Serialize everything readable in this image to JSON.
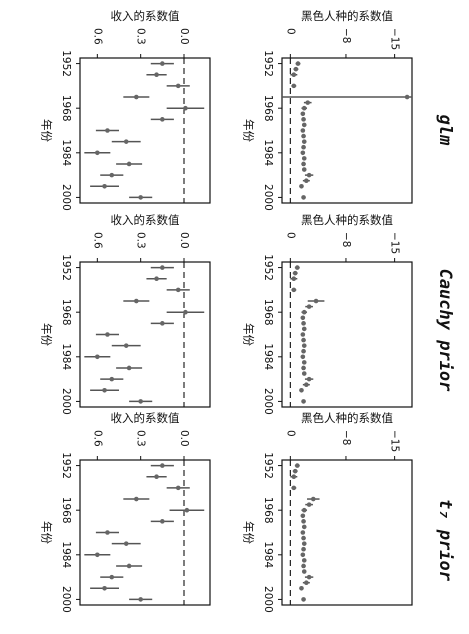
{
  "figure": {
    "column_titles": [
      "glm",
      "Cauchy prior",
      "t₇ prior"
    ]
  },
  "chart_data": [
    {
      "type": "scatter",
      "model": "glm",
      "variable": "race",
      "xlabel": "年份",
      "ylabel": "黑色人种的系数值",
      "xlim": [
        1950,
        2002
      ],
      "ylim": [
        -17.5,
        1.2
      ],
      "xticks": [
        "1952",
        "1968",
        "1984",
        "2000"
      ],
      "yticks": [
        "−15",
        "−8",
        "0"
      ],
      "x": [
        1952,
        1954,
        1956,
        1960,
        1964,
        1966,
        1968,
        1970,
        1972,
        1974,
        1976,
        1978,
        1980,
        1982,
        1984,
        1986,
        1988,
        1990,
        1992,
        1994,
        1996,
        2000
      ],
      "y": [
        -1.1,
        -0.8,
        -0.5,
        -0.5,
        -16.8,
        -2.5,
        -2.0,
        -1.8,
        -1.9,
        -2.0,
        -1.8,
        -1.9,
        -2.0,
        -1.9,
        -1.8,
        -2.0,
        -1.9,
        -2.0,
        -2.7,
        -2.3,
        -1.6,
        -1.9
      ],
      "yerr": [
        0.35,
        0.35,
        0.5,
        0.35,
        0,
        0.55,
        0.4,
        0.3,
        0.3,
        0.3,
        0.3,
        0.3,
        0.3,
        0.3,
        0.3,
        0.3,
        0.3,
        0.3,
        0.6,
        0.5,
        0.3,
        0.3
      ],
      "yerr_lower_to": [
        null,
        null,
        null,
        null,
        -17.5,
        null,
        null,
        null,
        null,
        null,
        null,
        null,
        null,
        null,
        null,
        null,
        null,
        null,
        null,
        null,
        null,
        null
      ],
      "yerr_upper_to": [
        null,
        null,
        null,
        null,
        1.2,
        null,
        null,
        null,
        null,
        null,
        null,
        null,
        null,
        null,
        null,
        null,
        null,
        null,
        null,
        null,
        null,
        null
      ]
    },
    {
      "type": "scatter",
      "model": "glm",
      "variable": "income",
      "xlabel": "年份",
      "ylabel": "收入的系数值",
      "xlim": [
        1950,
        2002
      ],
      "ylim": [
        -0.18,
        0.72
      ],
      "xticks": [
        "1952",
        "1968",
        "1984",
        "2000"
      ],
      "yticks": [
        "0.0",
        "0.3",
        "0.6"
      ],
      "x": [
        1952,
        1956,
        1960,
        1964,
        1968,
        1972,
        1976,
        1980,
        1984,
        1988,
        1992,
        1996,
        2000
      ],
      "y": [
        0.15,
        0.19,
        0.04,
        0.33,
        -0.01,
        0.15,
        0.53,
        0.4,
        0.6,
        0.38,
        0.5,
        0.55,
        0.3
      ],
      "yerr": [
        0.08,
        0.07,
        0.08,
        0.09,
        0.13,
        0.08,
        0.08,
        0.1,
        0.09,
        0.09,
        0.08,
        0.1,
        0.08
      ]
    },
    {
      "type": "scatter",
      "model": "Cauchy prior",
      "variable": "race",
      "xlabel": "年份",
      "ylabel": "黑色人种的系数值",
      "xlim": [
        1950,
        2002
      ],
      "ylim": [
        -17.5,
        1.2
      ],
      "xticks": [
        "1952",
        "1968",
        "1984",
        "2000"
      ],
      "yticks": [
        "−15",
        "−8",
        "0"
      ],
      "x": [
        1952,
        1954,
        1956,
        1960,
        1964,
        1966,
        1968,
        1970,
        1972,
        1974,
        1976,
        1978,
        1980,
        1982,
        1984,
        1986,
        1988,
        1990,
        1992,
        1994,
        1996,
        2000
      ],
      "y": [
        -1.0,
        -0.7,
        -0.5,
        -0.5,
        -3.7,
        -2.7,
        -2.0,
        -1.8,
        -1.9,
        -2.0,
        -1.8,
        -1.9,
        -2.0,
        -1.9,
        -1.8,
        -2.0,
        -1.9,
        -2.0,
        -2.7,
        -2.3,
        -1.6,
        -1.9
      ],
      "yerr": [
        0.35,
        0.35,
        0.5,
        0.35,
        1.2,
        0.55,
        0.4,
        0.3,
        0.3,
        0.3,
        0.3,
        0.3,
        0.3,
        0.3,
        0.3,
        0.3,
        0.3,
        0.3,
        0.6,
        0.5,
        0.3,
        0.3
      ]
    },
    {
      "type": "scatter",
      "model": "Cauchy prior",
      "variable": "income",
      "xlabel": "年份",
      "ylabel": "收入的系数值",
      "xlim": [
        1950,
        2002
      ],
      "ylim": [
        -0.18,
        0.72
      ],
      "xticks": [
        "1952",
        "1968",
        "1984",
        "2000"
      ],
      "yticks": [
        "0.0",
        "0.3",
        "0.6"
      ],
      "x": [
        1952,
        1956,
        1960,
        1964,
        1968,
        1972,
        1976,
        1980,
        1984,
        1988,
        1992,
        1996,
        2000
      ],
      "y": [
        0.15,
        0.19,
        0.04,
        0.33,
        -0.01,
        0.15,
        0.53,
        0.4,
        0.6,
        0.38,
        0.5,
        0.55,
        0.3
      ],
      "yerr": [
        0.08,
        0.07,
        0.08,
        0.09,
        0.13,
        0.08,
        0.08,
        0.1,
        0.09,
        0.09,
        0.08,
        0.1,
        0.08
      ]
    },
    {
      "type": "scatter",
      "model": "t₇ prior",
      "variable": "race",
      "xlabel": "年份",
      "ylabel": "黑色人种的系数值",
      "xlim": [
        1950,
        2002
      ],
      "ylim": [
        -17.5,
        1.2
      ],
      "xticks": [
        "1952",
        "1968",
        "1984",
        "2000"
      ],
      "yticks": [
        "−15",
        "−8",
        "0"
      ],
      "x": [
        1952,
        1954,
        1956,
        1960,
        1964,
        1966,
        1968,
        1970,
        1972,
        1974,
        1976,
        1978,
        1980,
        1982,
        1984,
        1986,
        1988,
        1990,
        1992,
        1994,
        1996,
        2000
      ],
      "y": [
        -1.0,
        -0.7,
        -0.5,
        -0.5,
        -3.3,
        -2.7,
        -2.0,
        -1.8,
        -1.9,
        -2.0,
        -1.8,
        -1.9,
        -2.0,
        -1.9,
        -1.8,
        -2.0,
        -1.9,
        -2.0,
        -2.7,
        -2.3,
        -1.6,
        -1.9
      ],
      "yerr": [
        0.35,
        0.35,
        0.5,
        0.35,
        0.9,
        0.55,
        0.4,
        0.3,
        0.3,
        0.3,
        0.3,
        0.3,
        0.3,
        0.3,
        0.3,
        0.3,
        0.3,
        0.3,
        0.6,
        0.5,
        0.3,
        0.3
      ]
    },
    {
      "type": "scatter",
      "model": "t₇ prior",
      "variable": "income",
      "xlabel": "年份",
      "ylabel": "收入的系数值",
      "xlim": [
        1950,
        2002
      ],
      "ylim": [
        -0.18,
        0.72
      ],
      "xticks": [
        "1952",
        "1968",
        "1984",
        "2000"
      ],
      "yticks": [
        "0.0",
        "0.3",
        "0.6"
      ],
      "x": [
        1952,
        1956,
        1960,
        1964,
        1968,
        1972,
        1976,
        1980,
        1984,
        1988,
        1992,
        1996,
        2000
      ],
      "y": [
        0.15,
        0.19,
        0.04,
        0.33,
        -0.02,
        0.15,
        0.53,
        0.4,
        0.6,
        0.38,
        0.5,
        0.55,
        0.3
      ],
      "yerr": [
        0.08,
        0.07,
        0.08,
        0.09,
        0.12,
        0.08,
        0.08,
        0.1,
        0.09,
        0.09,
        0.08,
        0.1,
        0.08
      ]
    }
  ]
}
